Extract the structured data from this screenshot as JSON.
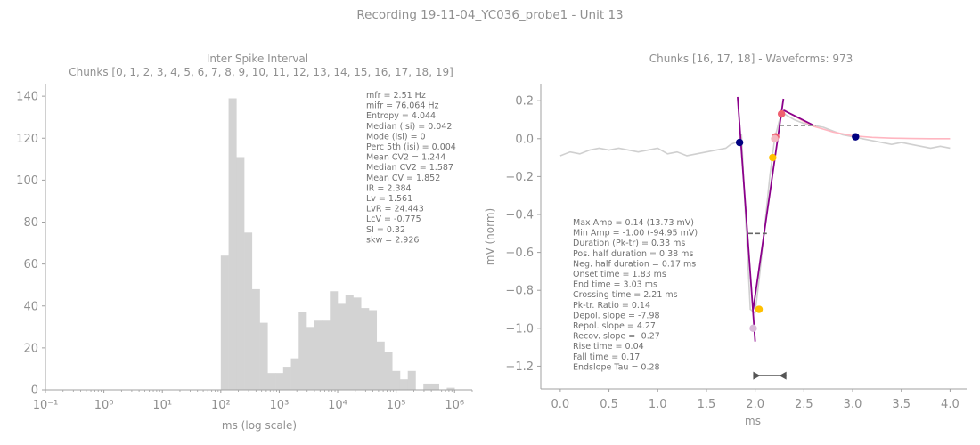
{
  "figure": {
    "suptitle": "Recording 19-11-04_YC036_probe1 - Unit 13"
  },
  "chart_data": [
    {
      "type": "bar",
      "title": "Inter Spike Interval",
      "subtitle": "Chunks [0, 1, 2, 3, 4, 5, 6, 7, 8, 9, 10, 11, 12, 13, 14, 15, 16, 17, 18, 19]",
      "xlabel": "ms (log scale)",
      "ylabel": "",
      "xscale": "log",
      "xlim": [
        0.1,
        2000000
      ],
      "ylim": [
        0,
        146
      ],
      "xticks": [
        "10⁻¹",
        "10⁰",
        "10¹",
        "10²",
        "10³",
        "10⁴",
        "10⁵",
        "10⁶"
      ],
      "xtick_exponents": [
        -1,
        0,
        1,
        2,
        3,
        4,
        5,
        6
      ],
      "yticks": [
        0,
        20,
        40,
        60,
        80,
        100,
        120,
        140
      ],
      "bin_log_start": 2.0,
      "bin_log_width": 0.1333,
      "values": [
        64,
        139,
        111,
        75,
        48,
        32,
        8,
        8,
        11,
        15,
        37,
        30,
        33,
        33,
        47,
        41,
        45,
        44,
        39,
        38,
        23,
        18,
        9,
        5,
        9,
        0,
        3,
        3,
        0,
        1
      ],
      "color": "#d3d3d3",
      "stats": [
        "mfr = 2.51 Hz",
        "mifr = 76.064 Hz",
        "Entropy = 4.044",
        "Median (isi) = 0.042",
        "Mode (isi) = 0",
        "Perc 5th (isi) = 0.004",
        "Mean CV2 = 1.244",
        "Median CV2 = 1.587",
        "Mean CV = 1.852",
        "IR = 2.384",
        "Lv = 1.561",
        "LvR = 24.443",
        "LcV = -0.775",
        "SI = 0.32",
        "skw = 2.926"
      ]
    },
    {
      "type": "line",
      "title": "Chunks [16, 17, 18] - Waveforms: 973",
      "xlabel": "ms",
      "ylabel": "mV (norm)",
      "xlim": [
        -0.2,
        4.17
      ],
      "ylim": [
        -1.32,
        0.29
      ],
      "xticks": [
        0.0,
        0.5,
        1.0,
        1.5,
        2.0,
        2.5,
        3.0,
        3.5,
        4.0
      ],
      "xtick_labels": [
        "0.0",
        "0.5",
        "1.0",
        "1.5",
        "2.0",
        "2.5",
        "3.0",
        "3.5",
        "4.0"
      ],
      "yticks": [
        0.2,
        0.0,
        -0.2,
        -0.4,
        -0.6,
        -0.8,
        -1.0,
        -1.2
      ],
      "ytick_labels": [
        "0.2",
        "0.0",
        "−0.2",
        "−0.4",
        "−0.6",
        "−0.8",
        "−1.0",
        "−1.2"
      ],
      "series": [
        {
          "role": "waveform",
          "color": "#d0d0d0",
          "x": [
            0.0,
            0.1,
            0.2,
            0.3,
            0.4,
            0.5,
            0.6,
            0.7,
            0.8,
            0.9,
            1.0,
            1.1,
            1.2,
            1.3,
            1.4,
            1.5,
            1.6,
            1.7,
            1.75,
            1.8,
            1.83,
            1.86,
            1.9,
            1.95,
            2.0,
            2.05,
            2.1,
            2.15,
            2.2,
            2.25,
            2.3,
            2.4,
            2.5,
            2.6,
            2.7,
            2.8,
            2.9,
            3.0,
            3.1,
            3.2,
            3.3,
            3.4,
            3.5,
            3.6,
            3.7,
            3.8,
            3.9,
            4.0
          ],
          "y": [
            -0.09,
            -0.07,
            -0.08,
            -0.06,
            -0.05,
            -0.06,
            -0.05,
            -0.06,
            -0.07,
            -0.06,
            -0.05,
            -0.08,
            -0.07,
            -0.09,
            -0.08,
            -0.07,
            -0.06,
            -0.05,
            -0.03,
            -0.02,
            -0.01,
            0.02,
            -0.4,
            -0.9,
            -0.92,
            -0.7,
            -0.45,
            -0.2,
            0.0,
            0.1,
            0.13,
            0.1,
            0.08,
            0.07,
            0.06,
            0.04,
            0.02,
            0.01,
            0.0,
            -0.01,
            -0.02,
            -0.03,
            -0.02,
            -0.03,
            -0.04,
            -0.05,
            -0.04,
            -0.05
          ]
        },
        {
          "role": "fit",
          "color": "#ffb6c1",
          "x": [
            2.3,
            2.4,
            2.5,
            2.6,
            2.7,
            2.8,
            2.9,
            3.0,
            3.2,
            3.4,
            3.6,
            3.8,
            4.0
          ],
          "y": [
            0.15,
            0.12,
            0.09,
            0.065,
            0.05,
            0.035,
            0.025,
            0.015,
            0.007,
            0.003,
            0.001,
            0.0,
            0.0
          ]
        },
        {
          "role": "slope",
          "color": "#8b008b",
          "x": [
            1.82,
            2.0
          ],
          "y": [
            0.22,
            -1.07
          ]
        },
        {
          "role": "slope",
          "color": "#8b008b",
          "x": [
            1.98,
            2.29
          ],
          "y": [
            -0.9,
            0.21
          ]
        },
        {
          "role": "slope",
          "color": "#8b008b",
          "x": [
            2.29,
            2.6
          ],
          "y": [
            0.15,
            0.07
          ]
        }
      ],
      "markers": [
        {
          "x": 1.84,
          "y": -0.02,
          "color": "#000080"
        },
        {
          "x": 3.03,
          "y": 0.01,
          "color": "#000080"
        },
        {
          "x": 2.18,
          "y": -0.1,
          "color": "#ffc000"
        },
        {
          "x": 2.04,
          "y": -0.9,
          "color": "#ffc000"
        },
        {
          "x": 2.21,
          "y": 0.01,
          "color": "#f06070"
        },
        {
          "x": 2.27,
          "y": 0.13,
          "color": "#f06070"
        },
        {
          "x": 1.98,
          "y": -1.0,
          "color": "#d8b8d8"
        },
        {
          "x": 2.2,
          "y": 0.0,
          "color": "#f5b8c0"
        }
      ],
      "dashed_segments": [
        {
          "x": [
            1.93,
            2.12
          ],
          "y": [
            -0.5,
            -0.5
          ],
          "color": "#666666"
        },
        {
          "x": [
            2.25,
            2.62
          ],
          "y": [
            0.07,
            0.07
          ],
          "color": "#666666"
        }
      ],
      "duration_arrow": {
        "x": [
          1.98,
          2.32
        ],
        "y": -1.25,
        "color": "#555555"
      },
      "stats": [
        "Max Amp = 0.14 (13.73 mV)",
        "Min Amp = -1.00 (-94.95 mV)",
        "Duration (Pk-tr) = 0.33 ms",
        "Pos. half duration = 0.38 ms",
        "Neg. half duration = 0.17 ms",
        "Onset time = 1.83 ms",
        "End time = 3.03 ms",
        "Crossing time = 2.21 ms",
        "Pk-tr. Ratio = 0.14",
        "Depol. slope = -7.98",
        "Repol. slope = 4.27",
        "Recov. slope = -0.27",
        "Rise time = 0.04",
        "Fall time = 0.17",
        "Endslope Tau = 0.28"
      ]
    }
  ]
}
